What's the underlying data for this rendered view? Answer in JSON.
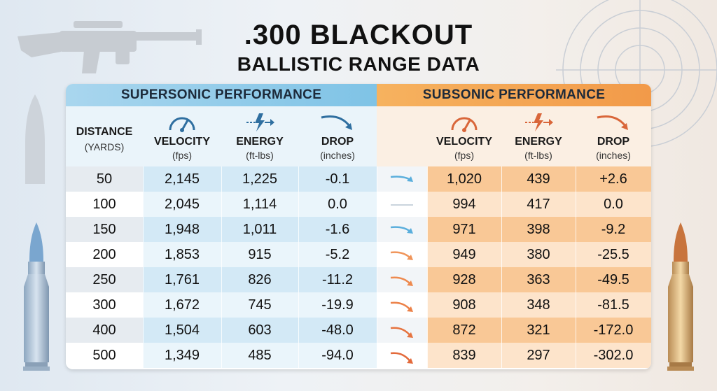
{
  "title": {
    "line1": ".300 BLACKOUT",
    "line2": "BALLISTIC RANGE DATA"
  },
  "bands": {
    "supersonic": "SUPERSONIC PERFORMANCE",
    "subsonic": "SUBSONIC PERFORMANCE"
  },
  "headers": {
    "distance": {
      "label": "DISTANCE",
      "unit": "(YARDS)"
    },
    "super_velocity": {
      "label": "VELOCITY",
      "unit": "(fps)",
      "icon": "speedometer-icon"
    },
    "super_energy": {
      "label": "ENERGY",
      "unit": "(ft-lbs)",
      "icon": "lightning-arrow-icon"
    },
    "super_drop": {
      "label": "DROP",
      "unit": "(inches)",
      "icon": "curved-arrow-icon"
    },
    "sub_velocity": {
      "label": "VELOCITY",
      "unit": "(fps)",
      "icon": "speedometer-icon"
    },
    "sub_energy": {
      "label": "ENERGY",
      "unit": "(ft-lbs)",
      "icon": "lightning-arrow-icon"
    },
    "sub_drop": {
      "label": "DROP",
      "unit": "(inches)",
      "icon": "curved-arrow-icon"
    }
  },
  "colors": {
    "supersonic_accent": "#7fc3e6",
    "subsonic_accent": "#f29a49"
  },
  "rows": [
    {
      "distance": "50",
      "sv": "2,145",
      "se": "1,225",
      "sd": "-0.1",
      "bv": "1,020",
      "be": "439",
      "bd": "+2.6"
    },
    {
      "distance": "100",
      "sv": "2,045",
      "se": "1,114",
      "sd": "0.0",
      "bv": "994",
      "be": "417",
      "bd": "0.0"
    },
    {
      "distance": "150",
      "sv": "1,948",
      "se": "1,011",
      "sd": "-1.6",
      "bv": "971",
      "be": "398",
      "bd": "-9.2"
    },
    {
      "distance": "200",
      "sv": "1,853",
      "se": "915",
      "sd": "-5.2",
      "bv": "949",
      "be": "380",
      "bd": "-25.5"
    },
    {
      "distance": "250",
      "sv": "1,761",
      "se": "826",
      "sd": "-11.2",
      "bv": "928",
      "be": "363",
      "bd": "-49.5"
    },
    {
      "distance": "300",
      "sv": "1,672",
      "se": "745",
      "sd": "-19.9",
      "bv": "908",
      "be": "348",
      "bd": "-81.5"
    },
    {
      "distance": "400",
      "sv": "1,504",
      "se": "603",
      "sd": "-48.0",
      "bv": "872",
      "be": "321",
      "bd": "-172.0"
    },
    {
      "distance": "500",
      "sv": "1,349",
      "se": "485",
      "sd": "-94.0",
      "bv": "839",
      "be": "297",
      "bd": "-302.0"
    }
  ]
}
